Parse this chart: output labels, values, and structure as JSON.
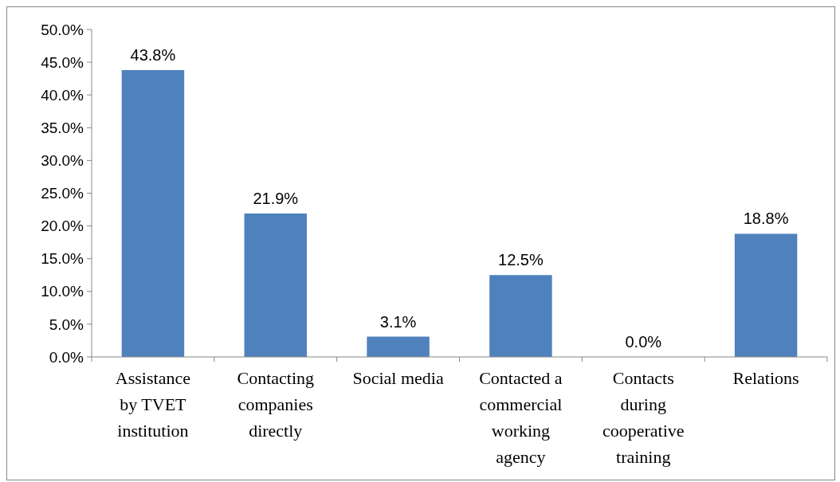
{
  "chart_data": {
    "type": "bar",
    "categories": [
      "Assistance by TVET institution",
      "Contacting companies directly",
      "Social media",
      "Contacted a commercial working agency",
      "Contacts during cooperative training",
      "Relations"
    ],
    "values": [
      43.8,
      21.9,
      3.1,
      12.5,
      0.0,
      18.8
    ],
    "value_labels": [
      "43.8%",
      "21.9%",
      "3.1%",
      "12.5%",
      "0.0%",
      "18.8%"
    ],
    "color": "#4f81bd",
    "ylim": [
      0,
      50
    ],
    "yticks": [
      {
        "value": 0,
        "label": "0.0%"
      },
      {
        "value": 5,
        "label": "5.0%"
      },
      {
        "value": 10,
        "label": "10.0%"
      },
      {
        "value": 15,
        "label": "15.0%"
      },
      {
        "value": 20,
        "label": "20.0%"
      },
      {
        "value": 25,
        "label": "25.0%"
      },
      {
        "value": 30,
        "label": "30.0%"
      },
      {
        "value": 35,
        "label": "35.0%"
      },
      {
        "value": 40,
        "label": "40.0%"
      },
      {
        "value": 45,
        "label": "45.0%"
      },
      {
        "value": 50,
        "label": "50.0%"
      }
    ],
    "grid": false
  }
}
